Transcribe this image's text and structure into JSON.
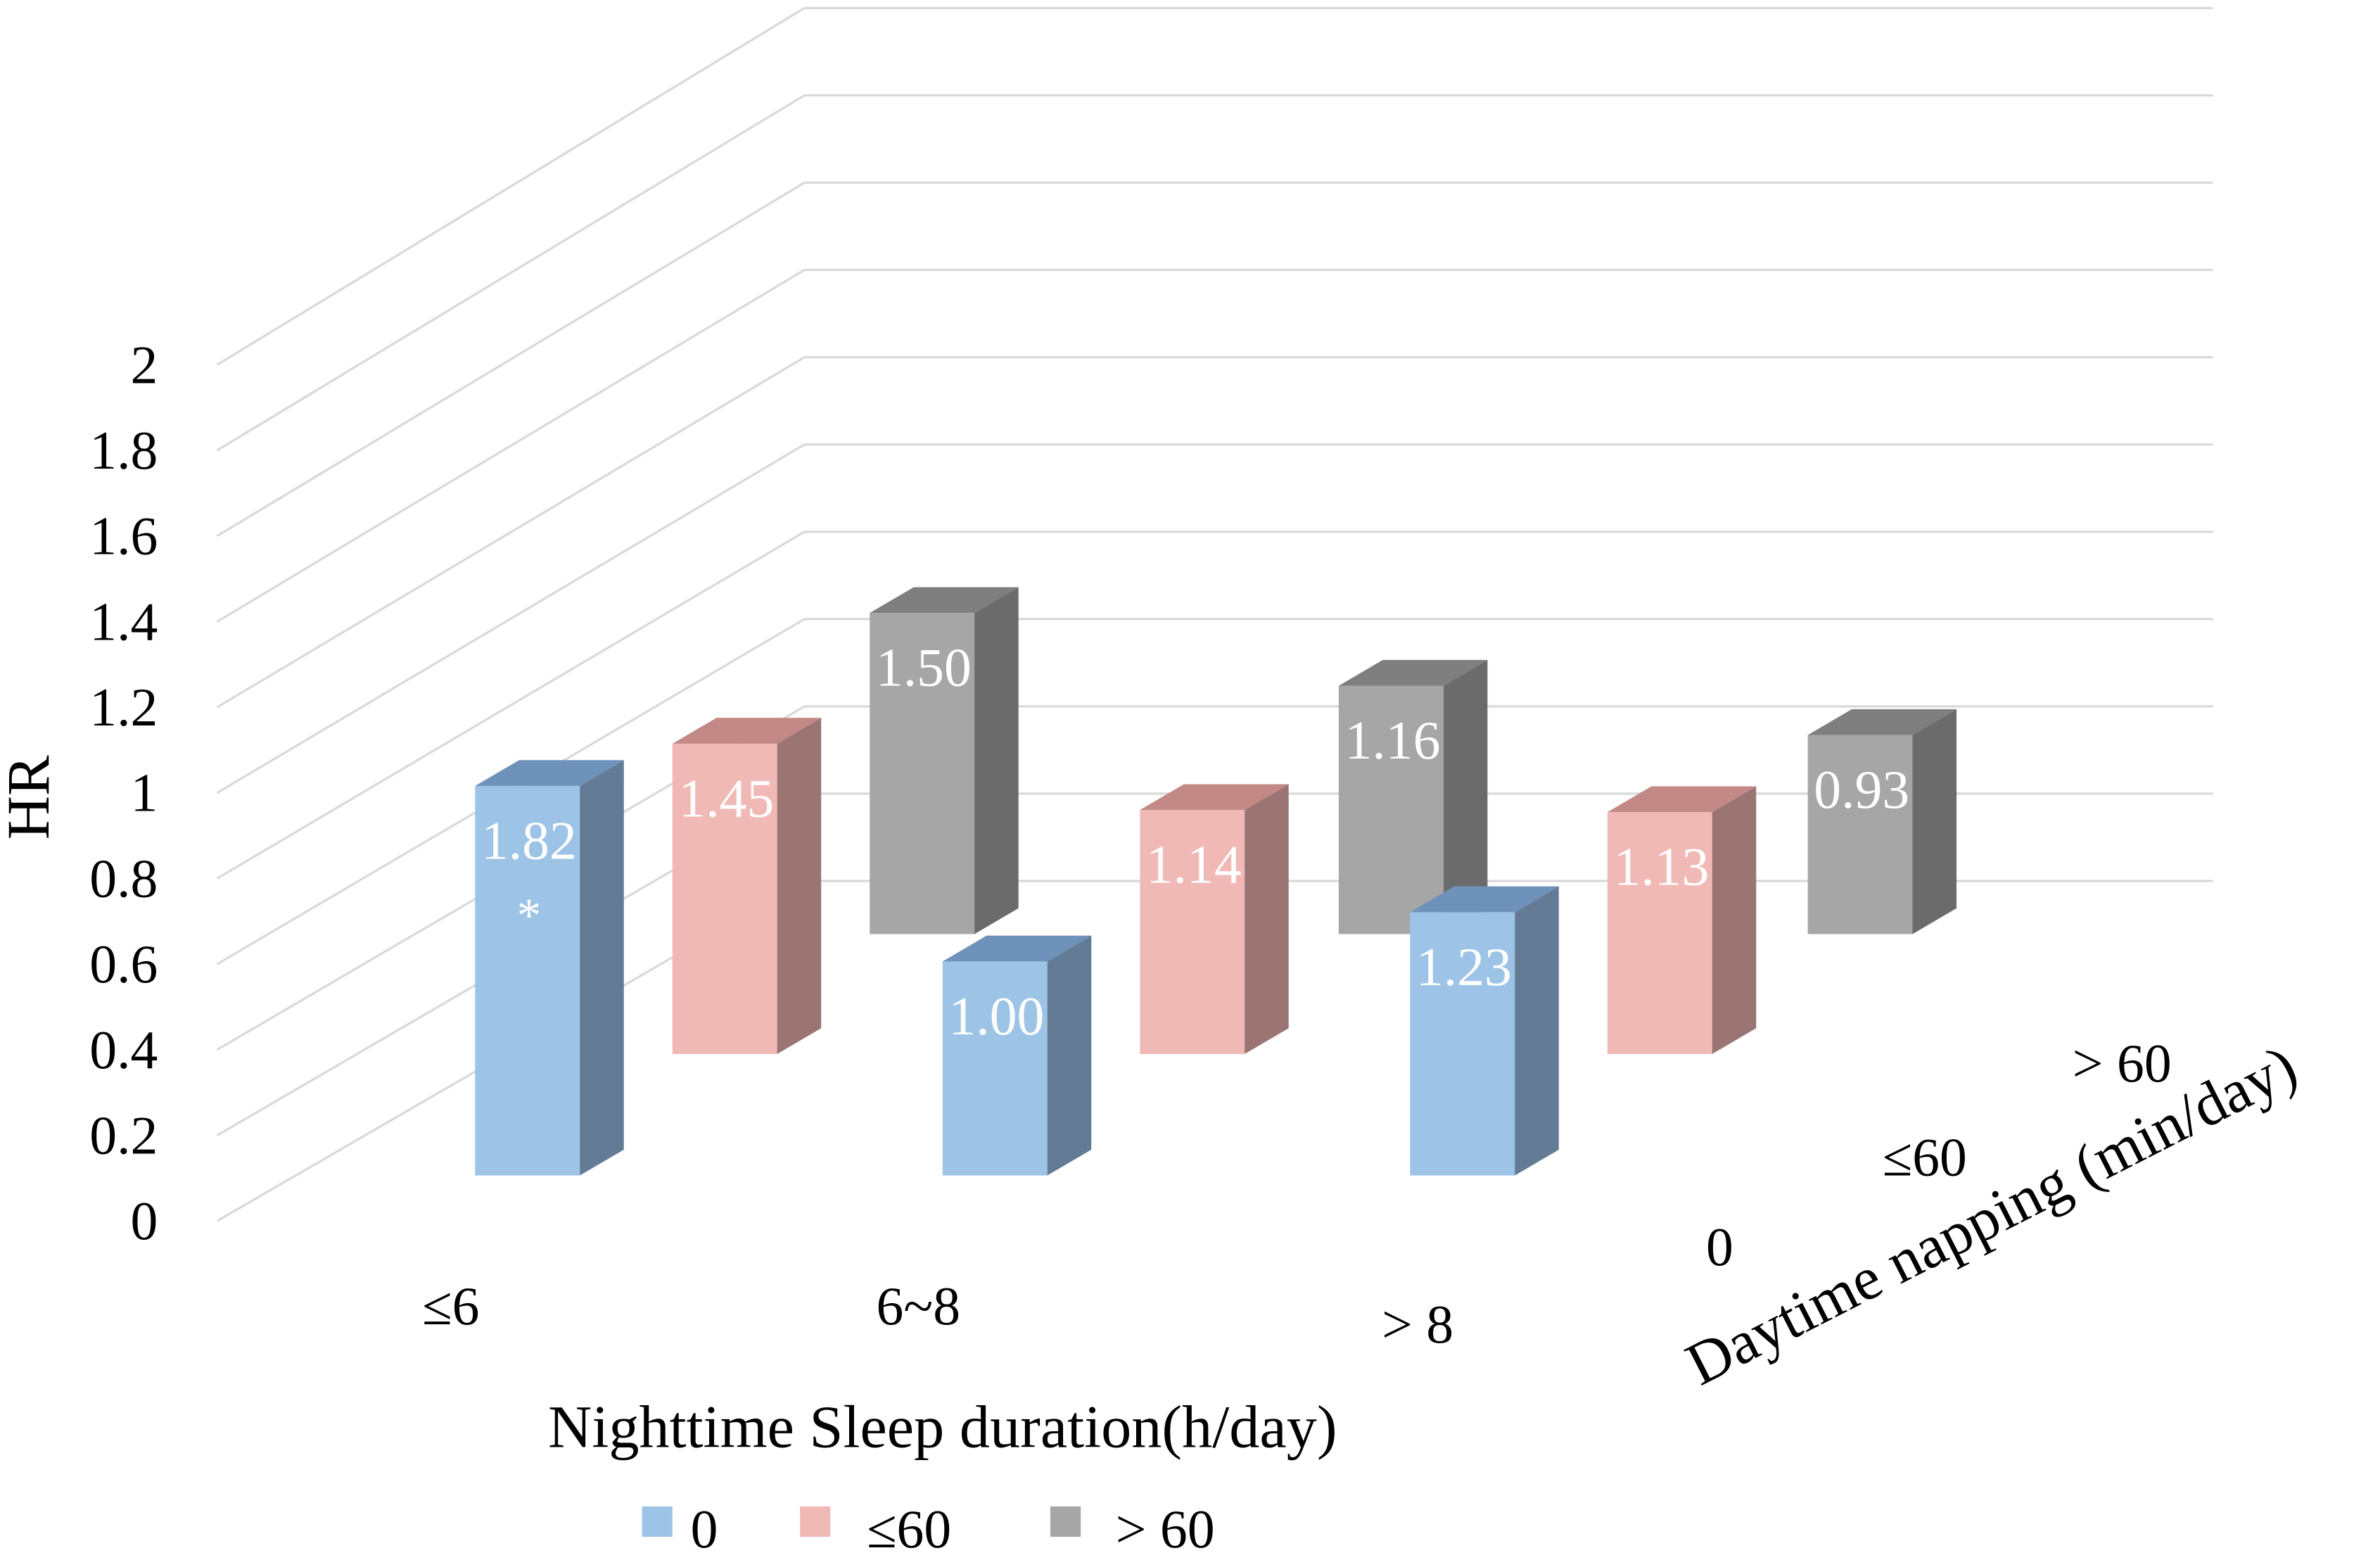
{
  "chart_data": {
    "type": "bar",
    "subtype": "3d-clustered",
    "title": "",
    "ylabel": "HR",
    "xlabel": "Nighttime Sleep duration(h/day)",
    "zlabel": "Daytime napping (min/day)",
    "ylim": [
      0,
      2
    ],
    "yticks": [
      "0",
      "0.2",
      "0.4",
      "0.6",
      "0.8",
      "1",
      "1.2",
      "1.4",
      "1.6",
      "1.8",
      "2"
    ],
    "categories": [
      "≤6",
      "6~8",
      "> 8"
    ],
    "depth_categories": [
      "0",
      "≤60",
      "> 60"
    ],
    "series": [
      {
        "name": "0",
        "color": "#9dc3e6",
        "side_color": "#647b95",
        "top_color": "#6f92ba",
        "values": [
          1.82,
          1.0,
          1.23
        ],
        "labels": [
          "1.82",
          "1.00",
          "1.23"
        ],
        "notes": [
          "*",
          "",
          ""
        ]
      },
      {
        "name": "≤60",
        "color": "#f1b9b6",
        "side_color": "#9b7573",
        "top_color": "#c28986",
        "values": [
          1.45,
          1.14,
          1.13
        ],
        "labels": [
          "1.45",
          "1.14",
          "1.13"
        ],
        "notes": [
          "",
          "",
          ""
        ]
      },
      {
        "name": "> 60",
        "color": "#a6a6a6",
        "side_color": "#6b6b6b",
        "top_color": "#7f7f7f",
        "values": [
          1.5,
          1.16,
          0.93
        ],
        "labels": [
          "1.50",
          "1.16",
          "0.93"
        ],
        "notes": [
          "",
          "",
          ""
        ]
      }
    ],
    "legend": {
      "position": "bottom",
      "entries": [
        "0",
        "≤60",
        "> 60"
      ]
    },
    "grid": true
  }
}
